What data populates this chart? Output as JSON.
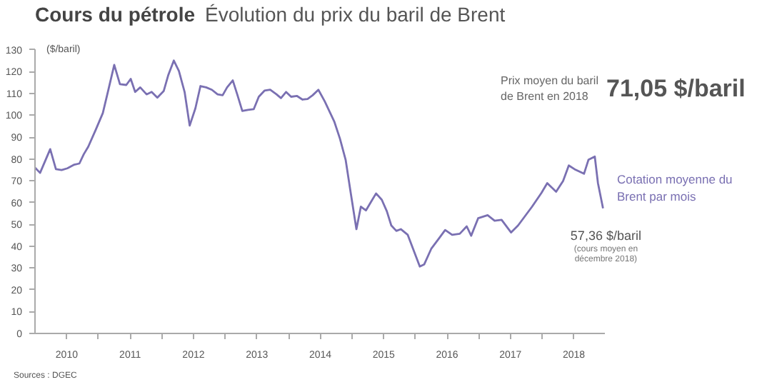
{
  "chart_data": {
    "type": "line",
    "title": "Cours du pétrole",
    "subtitle": "Évolution du prix du baril de Brent",
    "ylabel": "($/baril)",
    "annotations": [
      {
        "text": "57,36 $/baril",
        "x": 2018.96,
        "y": 57.36
      },
      "(cours moyen en décembre 2018)",
      "Prix moyen du baril de Brent en 2018",
      "71,05 $/baril",
      "Sources : DGEC"
    ],
    "xlim": [
      2010,
      2019
    ],
    "xticks": [
      {
        "value": 2010.5,
        "label": "2010"
      },
      {
        "value": 2011,
        "label": null
      },
      {
        "value": 2011.5,
        "label": "2011"
      },
      {
        "value": 2012,
        "label": null
      },
      {
        "value": 2012.5,
        "label": "2012"
      },
      {
        "value": 2013,
        "label": null
      },
      {
        "value": 2013.5,
        "label": "2013"
      },
      {
        "value": 2014,
        "label": null
      },
      {
        "value": 2014.5,
        "label": "2014"
      },
      {
        "value": 2015,
        "label": null
      },
      {
        "value": 2015.5,
        "label": "2015"
      },
      {
        "value": 2016,
        "label": null
      },
      {
        "value": 2016.5,
        "label": "2016"
      },
      {
        "value": 2017,
        "label": null
      },
      {
        "value": 2017.5,
        "label": "2017"
      },
      {
        "value": 2018,
        "label": null
      },
      {
        "value": 2018.5,
        "label": "2018"
      }
    ],
    "ylim": [
      0,
      130
    ],
    "yticks": [
      0,
      10,
      20,
      30,
      40,
      50,
      60,
      70,
      80,
      90,
      100,
      110,
      120,
      130
    ],
    "x": [
      2010.0,
      2010.08,
      2010.24,
      2010.33,
      2010.42,
      2010.51,
      2010.62,
      2010.7,
      2010.77,
      2010.84,
      2010.96,
      2011.07,
      2011.16,
      2011.25,
      2011.34,
      2011.44,
      2011.51,
      2011.58,
      2011.66,
      2011.76,
      2011.84,
      2011.93,
      2012.03,
      2012.1,
      2012.19,
      2012.27,
      2012.36,
      2012.44,
      2012.53,
      2012.61,
      2012.7,
      2012.79,
      2012.88,
      2012.96,
      2013.03,
      2013.12,
      2013.19,
      2013.27,
      2013.36,
      2013.45,
      2013.53,
      2013.62,
      2013.71,
      2013.81,
      2013.88,
      2013.96,
      2014.04,
      2014.13,
      2014.22,
      2014.3,
      2014.38,
      2014.47,
      2014.57,
      2014.72,
      2014.81,
      2014.9,
      2014.98,
      2015.07,
      2015.14,
      2015.22,
      2015.3,
      2015.38,
      2015.47,
      2015.55,
      2015.62,
      2015.7,
      2015.77,
      2015.88,
      2016.07,
      2016.14,
      2016.25,
      2016.36,
      2016.47,
      2016.58,
      2016.7,
      2016.81,
      2016.88,
      2016.99,
      2017.14,
      2017.25,
      2017.36,
      2017.51,
      2017.62,
      2017.84,
      2017.99,
      2018.08,
      2018.22,
      2018.33,
      2018.42,
      2018.51,
      2018.66,
      2018.73,
      2018.83,
      2018.88,
      2018.96
    ],
    "series": [
      {
        "name": "Cotation moyenne du Brent par mois",
        "color": "#7a70b2",
        "values": [
          76,
          73.6,
          84.5,
          75.3,
          74.9,
          75.7,
          77.4,
          77.9,
          82.2,
          85.6,
          93.5,
          101,
          112,
          123.1,
          114.3,
          113.9,
          116.7,
          110.7,
          112.8,
          109.6,
          110.7,
          108.1,
          111.1,
          118.2,
          125.1,
          120.3,
          110.7,
          95.3,
          103.2,
          113.4,
          112.8,
          111.7,
          109.6,
          109.2,
          112.8,
          116,
          109.6,
          102,
          102.5,
          102.8,
          108.5,
          111.3,
          111.7,
          109.6,
          107.9,
          110.7,
          108.5,
          108.9,
          107.2,
          107.5,
          109.2,
          111.7,
          106.4,
          97.2,
          89.3,
          79.6,
          64.5,
          47.8,
          58.1,
          56.4,
          60.3,
          64.2,
          61.3,
          56,
          49.5,
          47,
          47.8,
          45.2,
          30.7,
          31.7,
          38.8,
          43.1,
          47.4,
          45.2,
          45.7,
          49.1,
          44.8,
          52.8,
          54.2,
          51.7,
          52.1,
          46.3,
          49.5,
          58.1,
          64.5,
          68.9,
          65,
          69.9,
          77,
          75.3,
          73.2,
          79.6,
          81.1,
          68.9,
          57.36
        ]
      }
    ]
  }
}
